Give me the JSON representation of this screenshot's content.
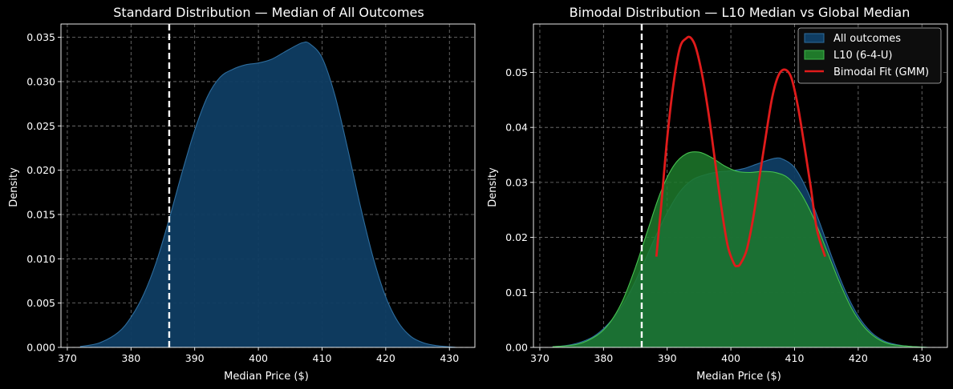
{
  "chart_data": [
    {
      "type": "area",
      "title": "Standard Distribution — Median of All Outcomes",
      "xlabel": "Median Price ($)",
      "ylabel": "Density",
      "xlim": [
        369,
        434
      ],
      "ylim": [
        0,
        0.0365
      ],
      "xticks": [
        370,
        380,
        390,
        400,
        410,
        420,
        430
      ],
      "yticks": [
        0.0,
        0.005,
        0.01,
        0.015,
        0.02,
        0.025,
        0.03,
        0.035
      ],
      "ytick_decimals": 3,
      "grid": true,
      "vline": {
        "x": 386,
        "style": "dashed",
        "color": "#ffffff"
      },
      "series": [
        {
          "name": "All outcomes",
          "fill": "#0f3d63",
          "stroke": "#2e6d9e",
          "x": [
            372,
            375,
            378,
            380,
            382,
            384,
            386,
            388,
            390,
            392,
            394,
            396,
            398,
            400,
            402,
            404,
            406,
            407,
            408,
            410,
            412,
            414,
            416,
            418,
            420,
            422,
            424,
            426,
            428,
            431
          ],
          "y": [
            0.0001,
            0.0005,
            0.0017,
            0.0034,
            0.006,
            0.0097,
            0.0145,
            0.0197,
            0.0245,
            0.0283,
            0.0305,
            0.0314,
            0.0319,
            0.0321,
            0.0325,
            0.0333,
            0.0341,
            0.0344,
            0.0343,
            0.0327,
            0.0285,
            0.0225,
            0.016,
            0.0102,
            0.0057,
            0.0028,
            0.0012,
            0.0005,
            0.0002,
            0.0
          ]
        }
      ]
    },
    {
      "type": "area",
      "title": "Bimodal Distribution — L10 Median vs Global Median",
      "xlabel": "Median Price ($)",
      "ylabel": "Density",
      "xlim": [
        369,
        434
      ],
      "ylim": [
        0,
        0.0588
      ],
      "xticks": [
        370,
        380,
        390,
        400,
        410,
        420,
        430
      ],
      "yticks": [
        0.0,
        0.01,
        0.02,
        0.03,
        0.04,
        0.05
      ],
      "ytick_decimals": 2,
      "grid": true,
      "vline": {
        "x": 386,
        "style": "dashed",
        "color": "#ffffff"
      },
      "legend": {
        "position": "top-right",
        "entries": [
          {
            "label": "All outcomes",
            "kind": "patch",
            "fill": "#0f3d63",
            "stroke": "#2e6d9e"
          },
          {
            "label": "L10 (6-4-U)",
            "kind": "patch",
            "fill": "#1f7a2a",
            "stroke": "#3fb84a"
          },
          {
            "label": "Bimodal Fit (GMM)",
            "kind": "line",
            "color": "#e01b1b"
          }
        ]
      },
      "series": [
        {
          "name": "All outcomes",
          "fill": "#0f3d63",
          "stroke": "#2e6d9e",
          "x": [
            372,
            375,
            378,
            380,
            382,
            384,
            386,
            388,
            390,
            392,
            394,
            396,
            398,
            400,
            402,
            404,
            406,
            407,
            408,
            410,
            412,
            414,
            416,
            418,
            420,
            422,
            424,
            426,
            428,
            431
          ],
          "y": [
            0.0001,
            0.0005,
            0.0017,
            0.0034,
            0.006,
            0.0097,
            0.0145,
            0.0197,
            0.0245,
            0.0283,
            0.0305,
            0.0314,
            0.0319,
            0.0321,
            0.0325,
            0.0333,
            0.0341,
            0.0344,
            0.0343,
            0.0327,
            0.0285,
            0.0225,
            0.016,
            0.0102,
            0.0057,
            0.0028,
            0.0012,
            0.0005,
            0.0002,
            0.0
          ]
        },
        {
          "name": "L10 (6-4-U)",
          "fill": "#1d7a2c",
          "stroke": "#46c24f",
          "x": [
            372,
            376,
            379,
            381,
            383,
            385,
            387,
            389,
            391,
            393,
            395,
            397,
            399,
            401,
            403,
            405,
            407,
            409,
            411,
            413,
            415,
            417,
            419,
            421,
            423,
            425,
            428,
            431
          ],
          "y": [
            0.0001,
            0.0006,
            0.0022,
            0.0045,
            0.0085,
            0.0145,
            0.0215,
            0.0283,
            0.033,
            0.0352,
            0.0355,
            0.0345,
            0.033,
            0.032,
            0.0318,
            0.032,
            0.0318,
            0.0308,
            0.028,
            0.0235,
            0.0178,
            0.012,
            0.007,
            0.0036,
            0.0016,
            0.0006,
            0.0002,
            0.0
          ]
        }
      ],
      "fit": {
        "name": "Bimodal Fit (GMM)",
        "color": "#e01b1b",
        "x": [
          388.3,
          389,
          390,
          391,
          392,
          393,
          393.7,
          394.5,
          395.5,
          396.5,
          397.5,
          398.5,
          399.5,
          400.5,
          401,
          401.5,
          402.5,
          403.5,
          404.5,
          405.5,
          406.5,
          407.5,
          408.5,
          409.5,
          410.5,
          411.5,
          412.5,
          413.5,
          414.8
        ],
        "y": [
          0.0165,
          0.025,
          0.038,
          0.048,
          0.0545,
          0.0562,
          0.0563,
          0.0545,
          0.0495,
          0.0425,
          0.034,
          0.0255,
          0.0185,
          0.0152,
          0.0148,
          0.0152,
          0.0178,
          0.0235,
          0.031,
          0.0385,
          0.0455,
          0.0495,
          0.0505,
          0.049,
          0.044,
          0.037,
          0.0295,
          0.0215,
          0.0165
        ]
      }
    }
  ]
}
